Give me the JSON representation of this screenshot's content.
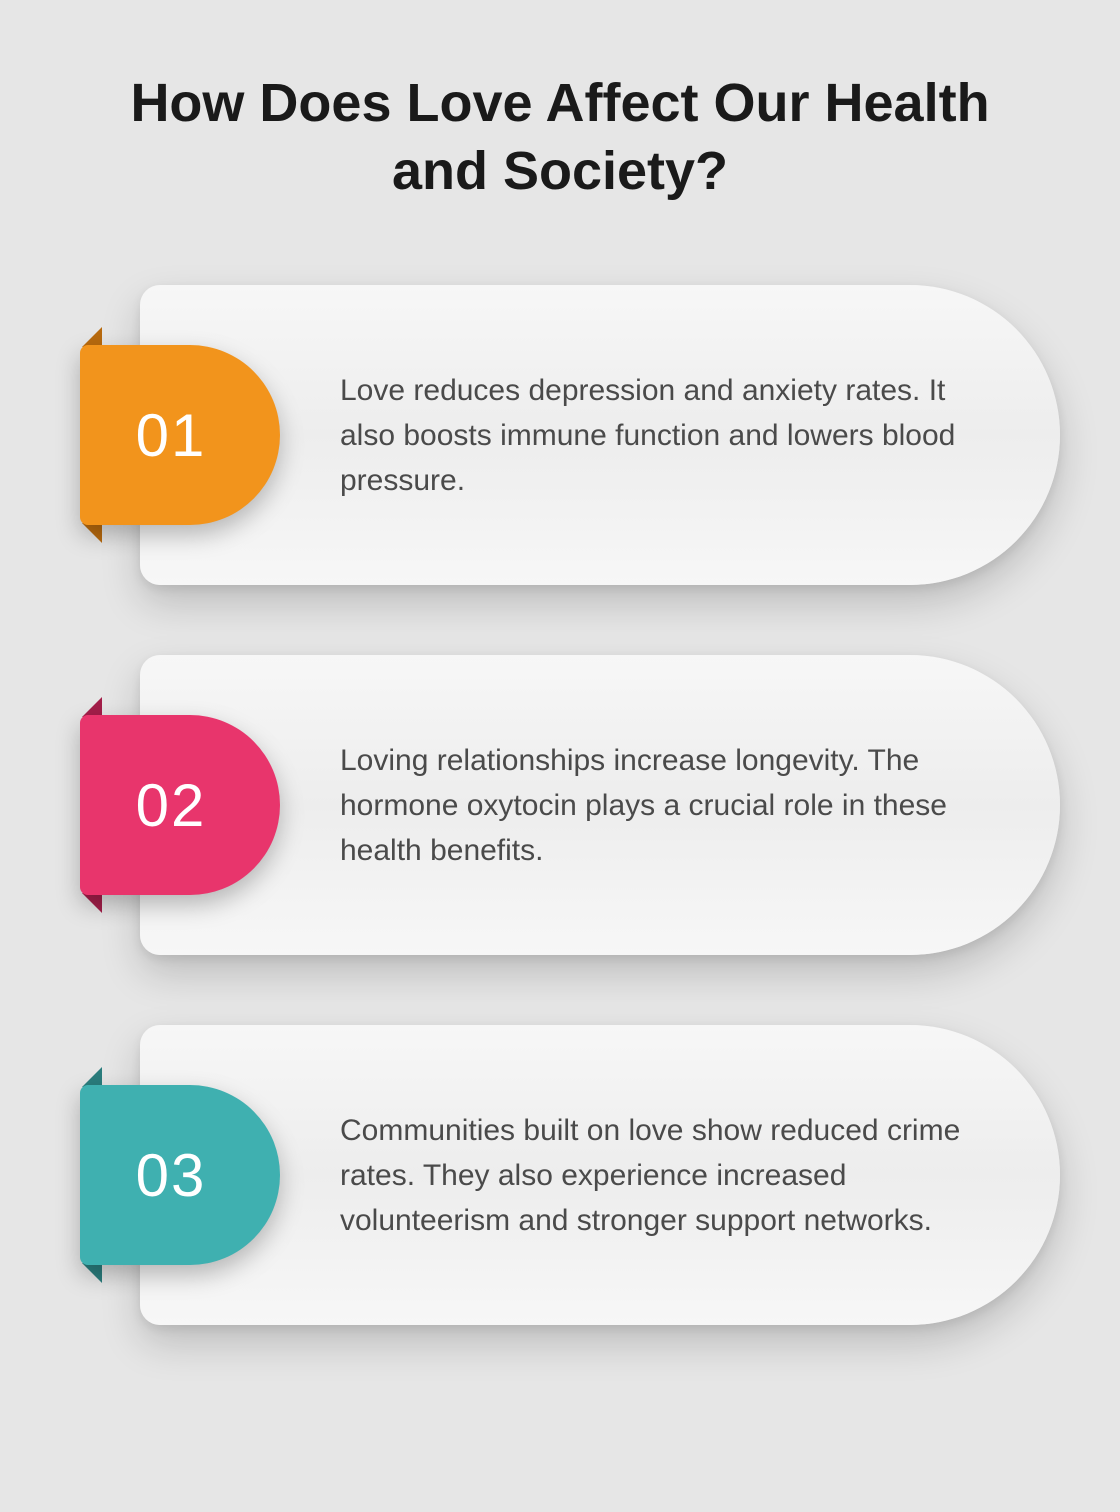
{
  "title": "How Does Love Affect Our Health and Society?",
  "title_fontsize": 54,
  "title_color": "#1a1a1a",
  "background_color": "#e6e6e6",
  "card_background": "linear-gradient(180deg, #f7f7f7 0%, #ededed 50%, #f7f7f7 100%)",
  "body_text_color": "#4a4a4a",
  "body_fontsize": 30,
  "badge_text_color": "#ffffff",
  "badge_fontsize": 60,
  "items": [
    {
      "number": "01",
      "text": "Love reduces depression and anxiety rates. It also boosts immune function and lowers blood pressure.",
      "badge_color": "#f2941c",
      "fold_color": "#b86a0e"
    },
    {
      "number": "02",
      "text": "Loving relationships increase longevity. The hormone oxytocin plays a crucial role in these health benefits.",
      "badge_color": "#e8356c",
      "fold_color": "#a31e49"
    },
    {
      "number": "03",
      "text": "Communities built on love show reduced crime rates. They also experience increased volunteerism and stronger support networks.",
      "badge_color": "#3fb0b0",
      "fold_color": "#2a7d7d"
    }
  ]
}
